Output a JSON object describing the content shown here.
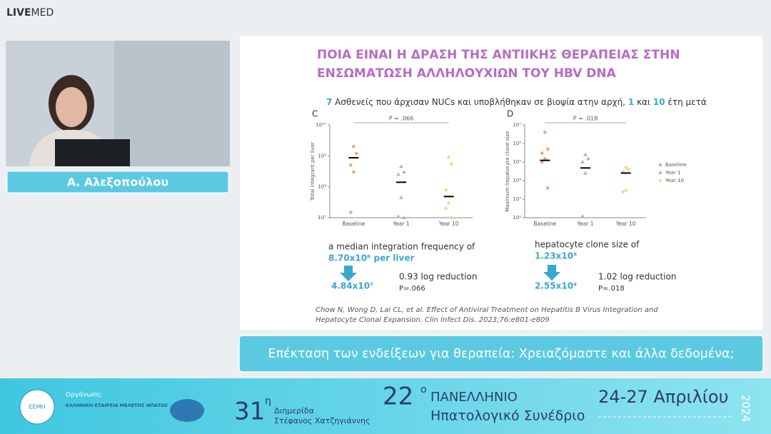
{
  "header": {
    "logo_bold": "LIVE",
    "logo_light": "MED"
  },
  "speaker": {
    "name": "Α. Αλεξοπούλου"
  },
  "slide": {
    "title": [
      "ΠΟΙΑ ΕΙΝΑΙ Η ΔΡΑΣΗ ΤΗΣ ΑΝΤΙΙΚΗΣ ΘΕΡΑΠΕΙΑΣ ΣΤΗΝ",
      "ΕΝΣΩΜΑΤΩΣΗ ΑΛΛΗΛΟΥΧΙΩΝ ΤΟΥ HBV DNA"
    ],
    "subtitle": [
      "7",
      " Ασθενείς που άρχισαν NUCs και υποβλήθηκαν σε βιοψία ατην αρχή, ",
      "1",
      " και ",
      "10",
      " έτη μετά"
    ],
    "charts": [
      {
        "panel": "C",
        "y_label": "Total integrant per liver",
        "p_value": "P = .066",
        "categories": [
          "Baseline",
          "Year 1",
          "Year 10"
        ],
        "log": true,
        "ylim": [
          10000000,
          10000000000
        ],
        "yticks": [
          {
            "value": 10000000000,
            "label": "10¹⁰"
          },
          {
            "value": 1000000000,
            "label": "10⁹"
          },
          {
            "value": 100000000,
            "label": "10⁸"
          },
          {
            "value": 10000000,
            "label": "10⁷"
          }
        ],
        "colors": [
          "#f0a57c",
          "#b5b5b5",
          "#f3d98a"
        ],
        "points": [
          [
            2000000000,
            1200000000,
            500000000,
            300000000,
            15000000
          ],
          [
            450000000,
            300000000,
            250000000,
            45000000,
            11000000,
            10000000
          ],
          [
            900000000,
            550000000,
            80000000,
            30000000,
            20000000,
            10000000
          ]
        ],
        "medians": [
          870000000,
          140000000,
          48400000
        ]
      },
      {
        "panel": "D",
        "y_label": "Maximum hepatocyte clone size",
        "p_value": "P = .018",
        "categories": [
          "Baseline",
          "Year 1",
          "Year 10"
        ],
        "log": true,
        "ylim": [
          100,
          10000000
        ],
        "yticks": [
          {
            "value": 10000000,
            "label": "10⁷"
          },
          {
            "value": 1000000,
            "label": "10⁶"
          },
          {
            "value": 100000,
            "label": "10⁵"
          },
          {
            "value": 10000,
            "label": "10⁴"
          },
          {
            "value": 1000,
            "label": "10³"
          },
          {
            "value": 100,
            "label": "10²"
          }
        ],
        "colors": [
          "#f0a57c",
          "#b5b5b5",
          "#f3d98a"
        ],
        "legend": [
          "Baseline",
          "Year 1",
          "Year 10"
        ],
        "points": [
          [
            4000000,
            500000,
            300000,
            150000,
            100000,
            4000
          ],
          [
            250000,
            150000,
            100000,
            25000,
            120
          ],
          [
            50000,
            40000,
            30000,
            3000,
            2500
          ]
        ],
        "medians": [
          123000,
          48000,
          25500
        ]
      }
    ],
    "notes": [
      {
        "intro": "a median integration frequency of",
        "start": "8.70x10⁸ per liver",
        "end": "4.84x10⁷",
        "reduction": "0.93 log reduction",
        "p": "P=.066"
      },
      {
        "intro": "hepatocyte clone size of",
        "start": "1.23x10⁵",
        "end": "2.55x10⁴",
        "reduction": "1.02 log reduction",
        "p": "P=.018"
      }
    ],
    "citation": [
      "Chow N, Wong D, Lai CL, et al. Effect of Antiviral Treatment on Hepatitis B Virus Integration and",
      "Hepatocyte Clonal Expansion. Clin Infect Dis. 2023;76:e801-e809"
    ]
  },
  "caption": "Επέκταση των ενδείξεων για θεραπεία: Χρειαζόμαστε και άλλα δεδομένα;",
  "banner": {
    "org_label": "Οργάνωση:",
    "org_name": "ΕΛΛΗΝΙΚΗ ΕΤΑΙΡΕΙΑ ΜΕΛΕΤΗΣ ΗΠΑΤΟΣ",
    "org_logo": "ΕΕΜΗ",
    "edition": "31",
    "edition_sup": "η",
    "event": "Διημερίδα",
    "honoree": "Στέφανος Χατζηγιάννης",
    "congress_no": "22",
    "congress_sup": "ο",
    "congress_line1": "ΠΑΝΕΛΛΗΝΙΟ",
    "congress_line2": "Ηπατολογικό Συνέδριο",
    "dates": "24-27 Απριλίου",
    "year": "2024"
  }
}
